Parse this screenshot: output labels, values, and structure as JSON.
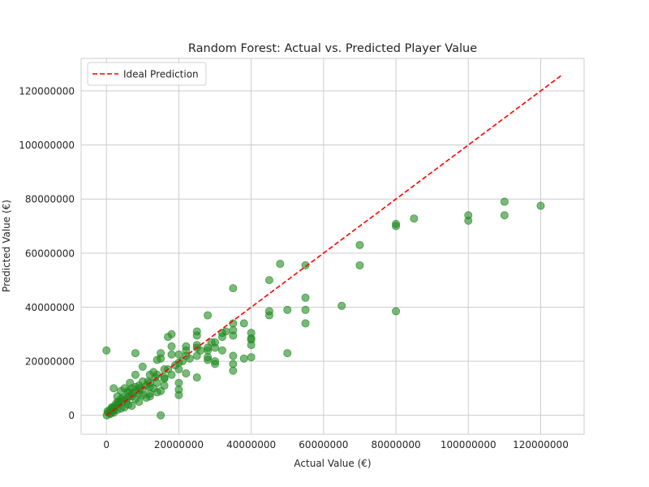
{
  "chart_data": {
    "type": "scatter",
    "title": "Random Forest: Actual vs. Predicted Player Value",
    "xlabel": "Actual Value (€)",
    "ylabel": "Predicted Value (€)",
    "xlim": [
      -7000000,
      132000000
    ],
    "ylim": [
      -7000000,
      132000000
    ],
    "xticks": [
      0,
      20000000,
      40000000,
      60000000,
      80000000,
      100000000,
      120000000
    ],
    "yticks": [
      0,
      20000000,
      40000000,
      60000000,
      80000000,
      100000000,
      120000000
    ],
    "xtick_labels": [
      "0",
      "20000000",
      "40000000",
      "60000000",
      "80000000",
      "100000000",
      "120000000"
    ],
    "ytick_labels": [
      "0",
      "20000000",
      "40000000",
      "60000000",
      "80000000",
      "100000000",
      "120000000"
    ],
    "grid": true,
    "legend_placement": "upper-left",
    "legend": [
      "Ideal Prediction"
    ],
    "point_color": "#228b22",
    "line_color": "#ff0000",
    "ideal_line": {
      "name": "Ideal Prediction",
      "x": [
        0,
        126000000
      ],
      "y": [
        0,
        126000000
      ]
    },
    "points": {
      "x": [
        120000000,
        110000000,
        110000000,
        100000000,
        100000000,
        85000000,
        80000000,
        80000000,
        80000000,
        70000000,
        70000000,
        65000000,
        55000000,
        55000000,
        55000000,
        55000000,
        50000000,
        50000000,
        48000000,
        45000000,
        45000000,
        45000000,
        40000000,
        40000000,
        40000000,
        40000000,
        40000000,
        38000000,
        38000000,
        35000000,
        35000000,
        35000000,
        35000000,
        35000000,
        35000000,
        35000000,
        32000000,
        32000000,
        32000000,
        30000000,
        30000000,
        30000000,
        30000000,
        28000000,
        28000000,
        28000000,
        28000000,
        28000000,
        25000000,
        25000000,
        25000000,
        25000000,
        25000000,
        25000000,
        22000000,
        22000000,
        22000000,
        22000000,
        20000000,
        20000000,
        20000000,
        20000000,
        20000000,
        20000000,
        18000000,
        18000000,
        18000000,
        17000000,
        17000000,
        16000000,
        16000000,
        16000000,
        15000000,
        15000000,
        15000000,
        15000000,
        14000000,
        14000000,
        14000000,
        13000000,
        13000000,
        12000000,
        12000000,
        12000000,
        12000000,
        11000000,
        11000000,
        10000000,
        10000000,
        10000000,
        9000000,
        9000000,
        9000000,
        8000000,
        8000000,
        8000000,
        7000000,
        7000000,
        7000000,
        6500000,
        6000000,
        6000000,
        5500000,
        5000000,
        5000000,
        4500000,
        4000000,
        4000000,
        3500000,
        3000000,
        3000000,
        2500000,
        2000000,
        2000000,
        1500000,
        1000000,
        1000000,
        500000,
        300000,
        100000,
        0,
        10000000,
        8000000,
        6000000,
        4000000,
        3000000,
        2000000,
        1500000,
        18000000,
        16000000,
        14000000,
        12000000,
        1200000,
        1800000,
        2200000,
        3200000,
        4200000,
        5200000,
        6200000,
        7200000,
        8200000,
        9200000,
        11500000,
        13500000,
        19000000,
        21000000,
        23000000,
        26000000,
        29000000,
        33000000
      ],
      "y": [
        77500000,
        79000000,
        74000000,
        74000000,
        72000000,
        72800000,
        70800000,
        70000000,
        38500000,
        63000000,
        55500000,
        40500000,
        55500000,
        43500000,
        39000000,
        34000000,
        39000000,
        23000000,
        56000000,
        50000000,
        38500000,
        37000000,
        30500000,
        28500000,
        28000000,
        26000000,
        21500000,
        34000000,
        21000000,
        47000000,
        34000000,
        31500000,
        29500000,
        22000000,
        19000000,
        16500000,
        30500000,
        29000000,
        24000000,
        27000000,
        25000000,
        20000000,
        19000000,
        37000000,
        25000000,
        24000000,
        21500000,
        20500000,
        31000000,
        29500000,
        26000000,
        25000000,
        22000000,
        14000000,
        25500000,
        24000000,
        22000000,
        15500000,
        22500000,
        19500000,
        17000000,
        12000000,
        9500000,
        7500000,
        30000000,
        25500000,
        22500000,
        29000000,
        17000000,
        17000000,
        14000000,
        11000000,
        23000000,
        21000000,
        9000000,
        0,
        20500000,
        15000000,
        8500000,
        16000000,
        10000000,
        15000000,
        12000000,
        8000000,
        7000000,
        11000000,
        6500000,
        18000000,
        12500000,
        7500000,
        11000000,
        8000000,
        5000000,
        23000000,
        15000000,
        6000000,
        10000000,
        7000000,
        3500000,
        12000000,
        8500000,
        4000000,
        5500000,
        10000000,
        3000000,
        6500000,
        9000000,
        2500000,
        5000000,
        7000000,
        2000000,
        4000000,
        10000000,
        1000000,
        3000000,
        2000000,
        500000,
        1000000,
        1500000,
        0,
        24000000,
        9500000,
        10500000,
        9000000,
        6000000,
        5000000,
        3000000,
        2500000,
        15000000,
        13500000,
        12000000,
        10500000,
        800000,
        1600000,
        2600000,
        4000000,
        4800000,
        6000000,
        7000000,
        8000000,
        9000000,
        10000000,
        12500000,
        14000000,
        18500000,
        20000000,
        21000000,
        24000000,
        27000000,
        31000000
      ]
    }
  }
}
